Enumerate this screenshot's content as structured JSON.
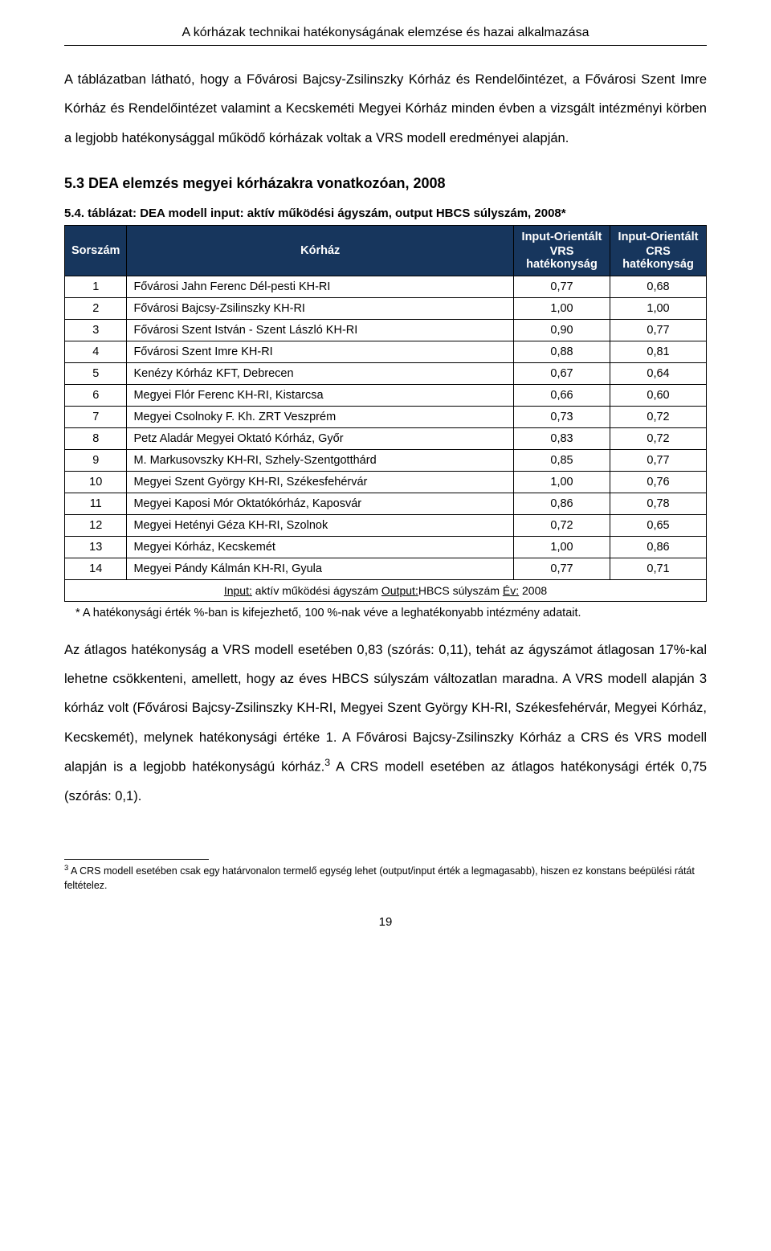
{
  "page_header": "A kórházak technikai hatékonyságának elemzése és hazai alkalmazása",
  "intro_paragraph": "A táblázatban látható, hogy a Fővárosi Bajcsy-Zsilinszky Kórház és Rendelőintézet, a Fővárosi Szent Imre Kórház és Rendelőintézet valamint a Kecskeméti Megyei Kórház minden évben a vizsgált intézményi körben a legjobb hatékonysággal működő kórházak voltak a VRS modell eredményei alapján.",
  "section_heading": "5.3   DEA elemzés megyei kórházakra vonatkozóan, 2008",
  "table_caption": "5.4. táblázat:  DEA modell input: aktív működési ágyszám, output HBCS súlyszám, 2008*",
  "table": {
    "header_bg": "#17365d",
    "header_fg": "#ffffff",
    "columns": [
      {
        "label": "Sorszám",
        "sub": ""
      },
      {
        "label": "Kórház",
        "sub": ""
      },
      {
        "label": "Input-Orientált",
        "sub": "VRS hatékonyság"
      },
      {
        "label": "Input-Orientált",
        "sub": "CRS hatékonyság"
      }
    ],
    "rows": [
      [
        "1",
        "Fővárosi Jahn Ferenc Dél-pesti KH-RI",
        "0,77",
        "0,68"
      ],
      [
        "2",
        "Fővárosi Bajcsy-Zsilinszky KH-RI",
        "1,00",
        "1,00"
      ],
      [
        "3",
        "Fővárosi Szent István - Szent László KH-RI",
        "0,90",
        "0,77"
      ],
      [
        "4",
        "Fővárosi Szent Imre KH-RI",
        "0,88",
        "0,81"
      ],
      [
        "5",
        "Kenézy Kórház KFT, Debrecen",
        "0,67",
        "0,64"
      ],
      [
        "6",
        "Megyei Flór Ferenc KH-RI, Kistarcsa",
        "0,66",
        "0,60"
      ],
      [
        "7",
        "Megyei Csolnoky F. Kh. ZRT Veszprém",
        "0,73",
        "0,72"
      ],
      [
        "8",
        "Petz Aladár Megyei Oktató Kórház, Győr",
        "0,83",
        "0,72"
      ],
      [
        "9",
        "M. Markusovszky KH-RI, Szhely-Szentgotthárd",
        "0,85",
        "0,77"
      ],
      [
        "10",
        "Megyei Szent György KH-RI, Székesfehérvár",
        "1,00",
        "0,76"
      ],
      [
        "11",
        "Megyei Kaposi Mór Oktatókórház, Kaposvár",
        "0,86",
        "0,78"
      ],
      [
        "12",
        "Megyei Hetényi Géza KH-RI, Szolnok",
        "0,72",
        "0,65"
      ],
      [
        "13",
        "Megyei Kórház, Kecskemét",
        "1,00",
        "0,86"
      ],
      [
        "14",
        "Megyei Pándy Kálmán KH-RI, Gyula",
        "0,77",
        "0,71"
      ]
    ],
    "footer_row_parts": {
      "u1": "Input:",
      "t1": " aktív működési ágyszám ",
      "u2": "Output:",
      "t2": "HBCS súlyszám ",
      "u3": "Év:",
      "t3": " 2008"
    }
  },
  "table_footnote": "* A hatékonysági érték %-ban is kifejezhető, 100 %-nak véve a leghatékonyabb intézmény adatait.",
  "body_paragraph_parts": {
    "p1": "Az átlagos hatékonyság a VRS modell esetében 0,83 (szórás: 0,11), tehát az ágyszámot átlagosan 17%-kal lehetne csökkenteni, amellett, hogy az éves HBCS súlyszám változatlan maradna. A VRS modell alapján 3 kórház volt (Fővárosi Bajcsy-Zsilinszky KH-RI, Megyei Szent György KH-RI, Székesfehérvár, Megyei Kórház, Kecskemét), melynek hatékonysági értéke 1. A Fővárosi Bajcsy-Zsilinszky Kórház a CRS és VRS modell alapján is a legjobb hatékonyságú kórház.",
    "sup": "3",
    "p2": " A CRS modell esetében az átlagos hatékonysági érték 0,75 (szórás: 0,1)."
  },
  "footnote_marker": "3",
  "footnote_text": " A CRS modell esetében csak egy határvonalon termelő egység lehet (output/input érték a legmagasabb), hiszen ez konstans beépülési rátát feltételez.",
  "page_number": "19"
}
